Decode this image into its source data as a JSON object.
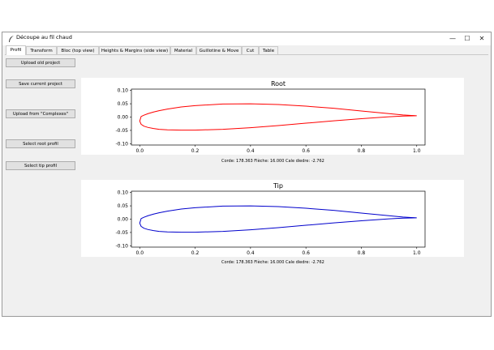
{
  "window": {
    "title": "Découpe au fil chaud",
    "controls": {
      "minimize": "—",
      "maximize": "☐",
      "close": "✕"
    }
  },
  "tabs": [
    {
      "label": "Profil",
      "active": true
    },
    {
      "label": "Transform",
      "active": false
    },
    {
      "label": "Bloc (top view)",
      "active": false
    },
    {
      "label": "Heights & Margins (side view)",
      "active": false
    },
    {
      "label": "Material",
      "active": false
    },
    {
      "label": "Guillotine & Move",
      "active": false
    },
    {
      "label": "Cut",
      "active": false
    },
    {
      "label": "Table",
      "active": false
    }
  ],
  "sidebar": {
    "upload_old": "Upload old project",
    "save_current": "Save current project",
    "upload_complexes": "Upload from \"Complexes\"",
    "select_root": "Select root profil",
    "select_tip": "Select tip profil"
  },
  "chart_data": [
    {
      "type": "line",
      "title": "Root",
      "color": "#ff0000",
      "xlim": [
        -0.03,
        1.03
      ],
      "ylim": [
        -0.105,
        0.105
      ],
      "xticks": [
        "0.0",
        "0.2",
        "0.4",
        "0.6",
        "0.8",
        "1.0"
      ],
      "yticks": [
        "0.10",
        "0.05",
        "0.00",
        "-0.05",
        "-0.10"
      ],
      "upper": {
        "x": [
          1.0,
          0.95,
          0.9,
          0.8,
          0.7,
          0.6,
          0.5,
          0.4,
          0.3,
          0.2,
          0.15,
          0.1,
          0.07,
          0.05,
          0.03,
          0.015,
          0.005,
          0.0
        ],
        "y": [
          0.005,
          0.008,
          0.013,
          0.023,
          0.033,
          0.041,
          0.047,
          0.05,
          0.049,
          0.043,
          0.038,
          0.03,
          0.024,
          0.019,
          0.013,
          0.007,
          0.002,
          -0.015
        ]
      },
      "lower": {
        "x": [
          0.0,
          0.005,
          0.015,
          0.03,
          0.05,
          0.07,
          0.1,
          0.15,
          0.2,
          0.3,
          0.4,
          0.5,
          0.6,
          0.7,
          0.8,
          0.9,
          0.95,
          1.0
        ],
        "y": [
          -0.015,
          -0.027,
          -0.034,
          -0.039,
          -0.043,
          -0.046,
          -0.048,
          -0.049,
          -0.049,
          -0.046,
          -0.04,
          -0.032,
          -0.023,
          -0.014,
          -0.006,
          0.001,
          0.004,
          0.005
        ]
      },
      "caption": "Corde: 178.363 Flèche: 16.000 Cale diedre: -2.762"
    },
    {
      "type": "line",
      "title": "Tip",
      "color": "#0000cc",
      "xlim": [
        -0.03,
        1.03
      ],
      "ylim": [
        -0.105,
        0.105
      ],
      "xticks": [
        "0.0",
        "0.2",
        "0.4",
        "0.6",
        "0.8",
        "1.0"
      ],
      "yticks": [
        "0.10",
        "0.05",
        "0.00",
        "-0.05",
        "-0.10"
      ],
      "upper": {
        "x": [
          1.0,
          0.95,
          0.9,
          0.8,
          0.7,
          0.6,
          0.5,
          0.4,
          0.3,
          0.2,
          0.15,
          0.1,
          0.07,
          0.05,
          0.03,
          0.015,
          0.005,
          0.0
        ],
        "y": [
          0.005,
          0.008,
          0.013,
          0.023,
          0.033,
          0.041,
          0.047,
          0.05,
          0.049,
          0.043,
          0.038,
          0.03,
          0.024,
          0.019,
          0.013,
          0.007,
          0.002,
          -0.015
        ]
      },
      "lower": {
        "x": [
          0.0,
          0.005,
          0.015,
          0.03,
          0.05,
          0.07,
          0.1,
          0.15,
          0.2,
          0.3,
          0.4,
          0.5,
          0.6,
          0.7,
          0.8,
          0.9,
          0.95,
          1.0
        ],
        "y": [
          -0.015,
          -0.027,
          -0.034,
          -0.039,
          -0.043,
          -0.046,
          -0.048,
          -0.049,
          -0.049,
          -0.046,
          -0.04,
          -0.032,
          -0.023,
          -0.014,
          -0.006,
          0.001,
          0.004,
          0.005
        ]
      },
      "caption": "Corde: 178.363 Flèche: 16.000 Cale diedre: -2.762"
    }
  ]
}
